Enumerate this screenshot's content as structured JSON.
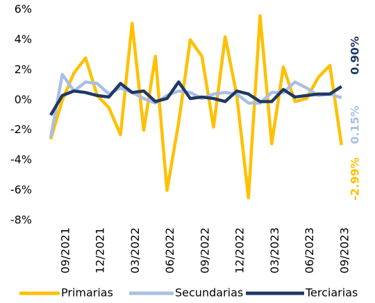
{
  "chart_data": {
    "type": "line",
    "categories": [
      null,
      "09/2021",
      null,
      null,
      "12/2021",
      null,
      null,
      "03/2022",
      null,
      null,
      "06/2022",
      null,
      null,
      "09/2022",
      null,
      null,
      "12/2022",
      null,
      null,
      "03/2023",
      null,
      null,
      "06/2023",
      null,
      null,
      "09/2023"
    ],
    "series": [
      {
        "name": "Primarias",
        "color": "#ffc000",
        "values": [
          -2.6,
          0,
          1.8,
          2.8,
          0.3,
          -0.5,
          -2.3,
          5.1,
          -2.0,
          2.9,
          -6.0,
          -1.5,
          4.0,
          2.9,
          -1.8,
          4.2,
          0.3,
          -6.5,
          5.6,
          -2.9,
          2.2,
          -0.1,
          0.1,
          1.5,
          2.3,
          -2.99
        ],
        "value_labels": [
          null,
          null,
          null,
          null,
          null,
          null,
          null,
          null,
          null,
          null,
          null,
          null,
          null,
          null,
          null,
          null,
          null,
          null,
          null,
          null,
          null,
          null,
          null,
          null,
          null,
          "-2.99%"
        ]
      },
      {
        "name": "Secundarias",
        "color": "#a9bfe3",
        "values": [
          -2.5,
          1.7,
          0.6,
          1.2,
          1.1,
          0.4,
          0.8,
          0.5,
          0.1,
          -0.2,
          0.3,
          0.6,
          0.5,
          0.1,
          0.4,
          0.5,
          0.4,
          -0.2,
          -0.2,
          0.5,
          0.5,
          1.2,
          0.8,
          0.3,
          0.4,
          0.15
        ],
        "value_labels": [
          null,
          null,
          null,
          null,
          null,
          null,
          null,
          null,
          null,
          null,
          null,
          null,
          null,
          null,
          null,
          null,
          null,
          null,
          null,
          null,
          null,
          null,
          null,
          null,
          null,
          "0.15%"
        ]
      },
      {
        "name": "Terciarias",
        "color": "#1f3864",
        "values": [
          -1.0,
          0.3,
          0.6,
          0.5,
          0.3,
          0.2,
          1.1,
          0.5,
          0.6,
          -0.1,
          0.1,
          1.2,
          0.1,
          0.2,
          0.1,
          -0.1,
          0.6,
          0.4,
          -0.1,
          -0.1,
          0.7,
          0.2,
          0.3,
          0.4,
          0.4,
          0.9
        ],
        "value_labels": [
          null,
          null,
          null,
          null,
          null,
          null,
          null,
          null,
          null,
          null,
          null,
          null,
          null,
          null,
          null,
          null,
          null,
          null,
          null,
          null,
          null,
          null,
          null,
          null,
          null,
          "0.90%"
        ]
      }
    ],
    "ylim": [
      -8,
      6
    ],
    "yticks": [
      {
        "value": -8,
        "label": "-8%"
      },
      {
        "value": -6,
        "label": "-6%"
      },
      {
        "value": -4,
        "label": "-4%"
      },
      {
        "value": -2,
        "label": "-2%"
      },
      {
        "value": 0,
        "label": "0%"
      },
      {
        "value": 2,
        "label": "2%"
      },
      {
        "value": 4,
        "label": "4%"
      },
      {
        "value": 6,
        "label": "6%"
      }
    ],
    "grid": false
  }
}
